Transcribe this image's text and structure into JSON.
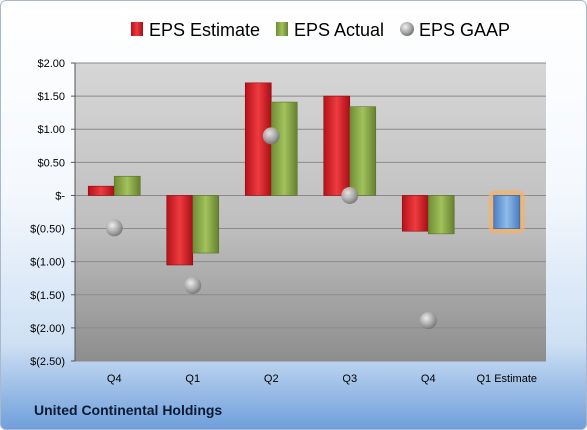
{
  "company": "United Continental Holdings",
  "chart_data": {
    "type": "bar",
    "categories": [
      "Q4",
      "Q1",
      "Q2",
      "Q3",
      "Q4",
      "Q1 Estimate"
    ],
    "series": [
      {
        "name": "EPS Estimate",
        "type": "bar",
        "color": "#e0232a",
        "values": [
          0.14,
          -1.05,
          1.7,
          1.5,
          -0.54,
          -0.5
        ]
      },
      {
        "name": "EPS Actual",
        "type": "bar",
        "color": "#8fb04b",
        "values": [
          0.29,
          -0.87,
          1.41,
          1.34,
          -0.58,
          null
        ]
      },
      {
        "name": "EPS GAAP",
        "type": "marker",
        "color": "#a8a8a8",
        "values": [
          -0.49,
          -1.36,
          0.9,
          0.0,
          -1.89,
          null
        ]
      }
    ],
    "estimate_bar_color": "#6ca0dc",
    "estimate_highlight_color": "#f6b266",
    "yticks": [
      2.0,
      1.5,
      1.0,
      0.5,
      0.0,
      -0.5,
      -1.0,
      -1.5,
      -2.0,
      -2.5
    ],
    "ytick_labels": [
      "$2.00",
      "$1.50",
      "$1.00",
      "$0.50",
      "$-",
      "$(0.50)",
      "$(1.00)",
      "$(1.50)",
      "$(2.00)",
      "$(2.50)"
    ],
    "ylim": [
      -2.5,
      2.0
    ],
    "legend_position": "top",
    "grid": true
  }
}
